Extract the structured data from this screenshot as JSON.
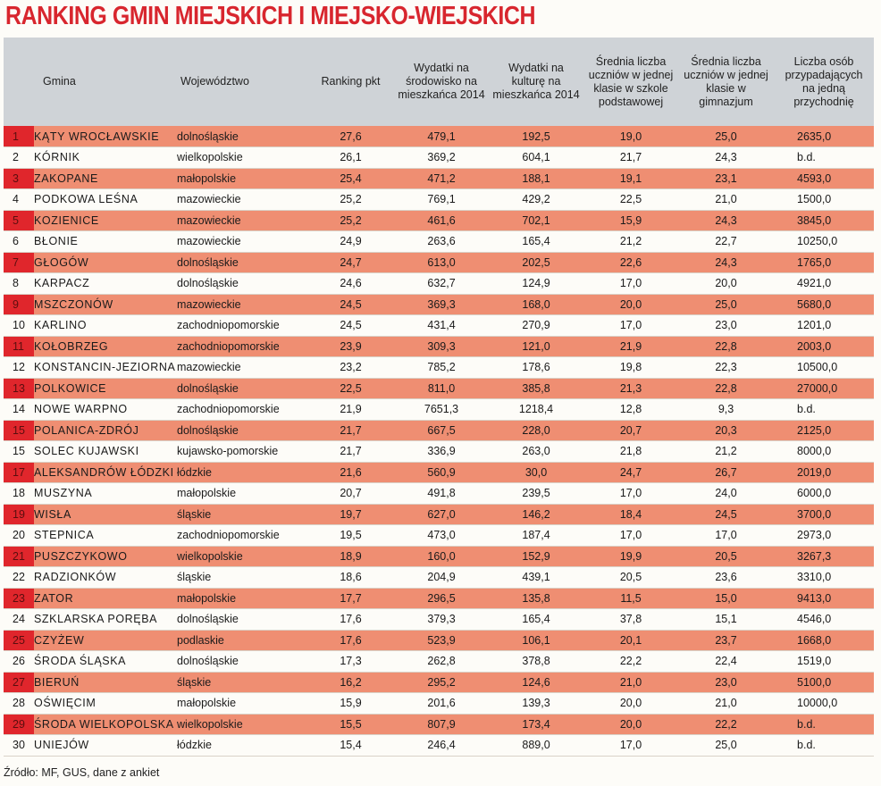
{
  "title": "RANKING GMIN MIEJSKICH I MIEJSKO-WIEJSKICH",
  "headers": {
    "gmina": "Gmina",
    "wojewodztwo": "Województwo",
    "ranking": "Ranking pkt",
    "wydatki_srodowisko": "Wydatki na środowisko na mieszkańca 2014",
    "wydatki_kultura": "Wydatki na kulturę na mieszkańca 2014",
    "srednia_podstawowa": "Średnia liczba uczniów w jednej klasie w szkole podstawowej",
    "srednia_gimnazjum": "Średnia liczba uczniów w jednej klasie w gimnazjum",
    "osoby_przychodnia": "Liczba osób przypadających na jedną przychodnię"
  },
  "rows": [
    {
      "rank": "1",
      "gmina": "KĄTY WROCŁAWSKIE",
      "woj": "dolnośląskie",
      "pkt": "27,6",
      "sr": "479,1",
      "ku": "192,5",
      "sp": "19,0",
      "gm": "25,0",
      "pr": "2635,0"
    },
    {
      "rank": "2",
      "gmina": "KÓRNIK",
      "woj": "wielkopolskie",
      "pkt": "26,1",
      "sr": "369,2",
      "ku": "604,1",
      "sp": "21,7",
      "gm": "24,3",
      "pr": "b.d."
    },
    {
      "rank": "3",
      "gmina": "ZAKOPANE",
      "woj": "małopolskie",
      "pkt": "25,4",
      "sr": "471,2",
      "ku": "188,1",
      "sp": "19,1",
      "gm": "23,1",
      "pr": "4593,0"
    },
    {
      "rank": "4",
      "gmina": "PODKOWA LEŚNA",
      "woj": "mazowieckie",
      "pkt": "25,2",
      "sr": "769,1",
      "ku": "429,2",
      "sp": "22,5",
      "gm": "21,0",
      "pr": "1500,0"
    },
    {
      "rank": "5",
      "gmina": "KOZIENICE",
      "woj": "mazowieckie",
      "pkt": "25,2",
      "sr": "461,6",
      "ku": "702,1",
      "sp": "15,9",
      "gm": "24,3",
      "pr": "3845,0"
    },
    {
      "rank": "6",
      "gmina": "BŁONIE",
      "woj": "mazowieckie",
      "pkt": "24,9",
      "sr": "263,6",
      "ku": "165,4",
      "sp": "21,2",
      "gm": "22,7",
      "pr": "10250,0"
    },
    {
      "rank": "7",
      "gmina": "GŁOGÓW",
      "woj": "dolnośląskie",
      "pkt": "24,7",
      "sr": "613,0",
      "ku": "202,5",
      "sp": "22,6",
      "gm": "24,3",
      "pr": "1765,0"
    },
    {
      "rank": "8",
      "gmina": "KARPACZ",
      "woj": "dolnośląskie",
      "pkt": "24,6",
      "sr": "632,7",
      "ku": "124,9",
      "sp": "17,0",
      "gm": "20,0",
      "pr": "4921,0"
    },
    {
      "rank": "9",
      "gmina": "MSZCZONÓW",
      "woj": "mazowieckie",
      "pkt": "24,5",
      "sr": "369,3",
      "ku": "168,0",
      "sp": "20,0",
      "gm": "25,0",
      "pr": "5680,0"
    },
    {
      "rank": "10",
      "gmina": "KARLINO",
      "woj": "zachodniopomorskie",
      "pkt": "24,5",
      "sr": "431,4",
      "ku": "270,9",
      "sp": "17,0",
      "gm": "23,0",
      "pr": "1201,0"
    },
    {
      "rank": "11",
      "gmina": "KOŁOBRZEG",
      "woj": "zachodniopomorskie",
      "pkt": "23,9",
      "sr": "309,3",
      "ku": "121,0",
      "sp": "21,9",
      "gm": "22,8",
      "pr": "2003,0"
    },
    {
      "rank": "12",
      "gmina": "KONSTANCIN-JEZIORNA",
      "woj": "mazowieckie",
      "pkt": "23,2",
      "sr": "785,2",
      "ku": "178,6",
      "sp": "19,8",
      "gm": "22,3",
      "pr": "10500,0"
    },
    {
      "rank": "13",
      "gmina": "POLKOWICE",
      "woj": "dolnośląskie",
      "pkt": "22,5",
      "sr": "811,0",
      "ku": "385,8",
      "sp": "21,3",
      "gm": "22,8",
      "pr": "27000,0"
    },
    {
      "rank": "14",
      "gmina": "NOWE WARPNO",
      "woj": "zachodniopomorskie",
      "pkt": "21,9",
      "sr": "7651,3",
      "ku": "1218,4",
      "sp": "12,8",
      "gm": "9,3",
      "pr": "b.d."
    },
    {
      "rank": "15",
      "gmina": "POLANICA-ZDRÓJ",
      "woj": "dolnośląskie",
      "pkt": "21,7",
      "sr": "667,5",
      "ku": "228,0",
      "sp": "20,7",
      "gm": "20,3",
      "pr": "2125,0"
    },
    {
      "rank": "15",
      "gmina": "SOLEC KUJAWSKI",
      "woj": "kujawsko-pomorskie",
      "pkt": "21,7",
      "sr": "336,9",
      "ku": "263,0",
      "sp": "21,8",
      "gm": "21,2",
      "pr": "8000,0"
    },
    {
      "rank": "17",
      "gmina": "ALEKSANDRÓW ŁÓDZKI",
      "woj": "łódzkie",
      "pkt": "21,6",
      "sr": "560,9",
      "ku": "30,0",
      "sp": "24,7",
      "gm": "26,7",
      "pr": "2019,0"
    },
    {
      "rank": "18",
      "gmina": "MUSZYNA",
      "woj": "małopolskie",
      "pkt": "20,7",
      "sr": "491,8",
      "ku": "239,5",
      "sp": "17,0",
      "gm": "24,0",
      "pr": "6000,0"
    },
    {
      "rank": "19",
      "gmina": "WISŁA",
      "woj": "śląskie",
      "pkt": "19,7",
      "sr": "627,0",
      "ku": "146,2",
      "sp": "18,4",
      "gm": "24,5",
      "pr": "3700,0"
    },
    {
      "rank": "20",
      "gmina": "STEPNICA",
      "woj": "zachodniopomorskie",
      "pkt": "19,5",
      "sr": "473,0",
      "ku": "187,4",
      "sp": "17,0",
      "gm": "17,0",
      "pr": "2973,0"
    },
    {
      "rank": "21",
      "gmina": "PUSZCZYKOWO",
      "woj": "wielkopolskie",
      "pkt": "18,9",
      "sr": "160,0",
      "ku": "152,9",
      "sp": "19,9",
      "gm": "20,5",
      "pr": "3267,3"
    },
    {
      "rank": "22",
      "gmina": "RADZIONKÓW",
      "woj": "śląskie",
      "pkt": "18,6",
      "sr": "204,9",
      "ku": "439,1",
      "sp": "20,5",
      "gm": "23,6",
      "pr": "3310,0"
    },
    {
      "rank": "23",
      "gmina": "ZATOR",
      "woj": "małopolskie",
      "pkt": "17,7",
      "sr": "296,5",
      "ku": "135,8",
      "sp": "11,5",
      "gm": "15,0",
      "pr": "9413,0"
    },
    {
      "rank": "24",
      "gmina": "SZKLARSKA PORĘBA",
      "woj": "dolnośląskie",
      "pkt": "17,6",
      "sr": "379,3",
      "ku": "165,4",
      "sp": "37,8",
      "gm": "15,1",
      "pr": "4546,0"
    },
    {
      "rank": "25",
      "gmina": "CZYŻEW",
      "woj": "podlaskie",
      "pkt": "17,6",
      "sr": "523,9",
      "ku": "106,1",
      "sp": "20,1",
      "gm": "23,7",
      "pr": "1668,0"
    },
    {
      "rank": "26",
      "gmina": "ŚRODA ŚLĄSKA",
      "woj": "dolnośląskie",
      "pkt": "17,3",
      "sr": "262,8",
      "ku": "378,8",
      "sp": "22,2",
      "gm": "22,4",
      "pr": "1519,0"
    },
    {
      "rank": "27",
      "gmina": "BIERUŃ",
      "woj": "śląskie",
      "pkt": "16,2",
      "sr": "295,2",
      "ku": "124,6",
      "sp": "21,0",
      "gm": "23,0",
      "pr": "5100,0"
    },
    {
      "rank": "28",
      "gmina": "OŚWIĘCIM",
      "woj": "małopolskie",
      "pkt": "15,9",
      "sr": "201,6",
      "ku": "139,3",
      "sp": "20,0",
      "gm": "21,0",
      "pr": "10000,0"
    },
    {
      "rank": "29",
      "gmina": "ŚRODA WIELKOPOLSKA",
      "woj": "wielkopolskie",
      "pkt": "15,5",
      "sr": "807,9",
      "ku": "173,4",
      "sp": "20,0",
      "gm": "22,2",
      "pr": "b.d."
    },
    {
      "rank": "30",
      "gmina": "UNIEJÓW",
      "woj": "łódzkie",
      "pkt": "15,4",
      "sr": "246,4",
      "ku": "889,0",
      "sp": "17,0",
      "gm": "25,0",
      "pr": "b.d."
    }
  ],
  "source": "Źródło: MF, GUS, dane z ankiet",
  "colors": {
    "title": "#d8262e",
    "header_bg": "#cfd3d7",
    "odd_row": "#ef8e72",
    "rank_cell": "#e0262c",
    "even_row": "#fdfcf8"
  }
}
